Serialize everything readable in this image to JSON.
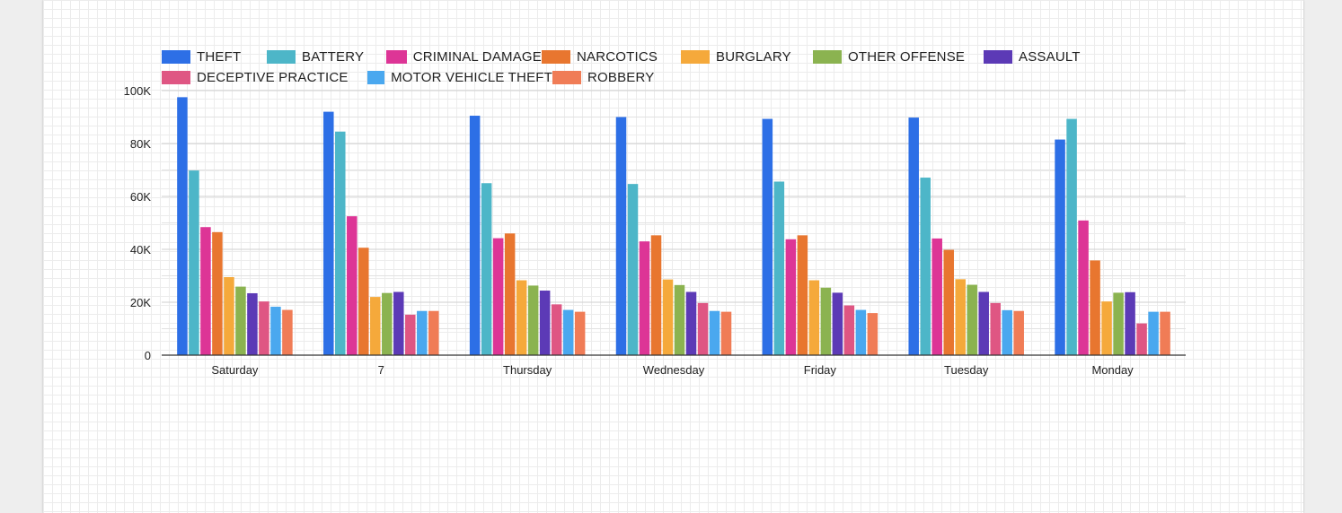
{
  "chart_data": {
    "type": "bar",
    "categories": [
      "Saturday",
      "7",
      "Thursday",
      "Wednesday",
      "Friday",
      "Tuesday",
      "Monday"
    ],
    "ylim": [
      0,
      100000
    ],
    "yticks": [
      "0",
      "20K",
      "40K",
      "60K",
      "80K",
      "100K"
    ],
    "yticks_values": [
      0,
      20000,
      40000,
      60000,
      80000,
      100000
    ],
    "grid": true,
    "legend_position": "top",
    "series": [
      {
        "name": "THEFT",
        "color": "#2d6fe6",
        "values": [
          97500,
          92000,
          90500,
          90000,
          89300,
          89800,
          81500
        ]
      },
      {
        "name": "BATTERY",
        "color": "#4db6c8",
        "values": [
          69800,
          84500,
          65000,
          64700,
          65600,
          67100,
          89300
        ]
      },
      {
        "name": "CRIMINAL DAMAGE",
        "color": "#dd3596",
        "values": [
          48400,
          52500,
          44200,
          43000,
          43800,
          44100,
          50900
        ]
      },
      {
        "name": "NARCOTICS",
        "color": "#e8762f",
        "values": [
          46500,
          40600,
          46000,
          45300,
          45300,
          39800,
          35800
        ]
      },
      {
        "name": "BURGLARY",
        "color": "#f5a93b",
        "values": [
          29500,
          22000,
          28300,
          28600,
          28300,
          28700,
          20300
        ]
      },
      {
        "name": "OTHER OFFENSE",
        "color": "#8bb350",
        "values": [
          25900,
          23500,
          26300,
          26500,
          25500,
          26600,
          23600
        ]
      },
      {
        "name": "ASSAULT",
        "color": "#5c3ab6",
        "values": [
          23400,
          23900,
          24400,
          23900,
          23600,
          23900,
          23800
        ]
      },
      {
        "name": "DECEPTIVE PRACTICE",
        "color": "#df5683",
        "values": [
          20300,
          15300,
          19200,
          19700,
          18800,
          19700,
          12000
        ]
      },
      {
        "name": "MOTOR VEHICLE THEFT",
        "color": "#4aa8ef",
        "values": [
          18300,
          16700,
          17100,
          16700,
          17100,
          17000,
          16400
        ]
      },
      {
        "name": "ROBBERY",
        "color": "#f07c56",
        "values": [
          17100,
          16700,
          16400,
          16400,
          15900,
          16700,
          16400
        ]
      }
    ]
  }
}
